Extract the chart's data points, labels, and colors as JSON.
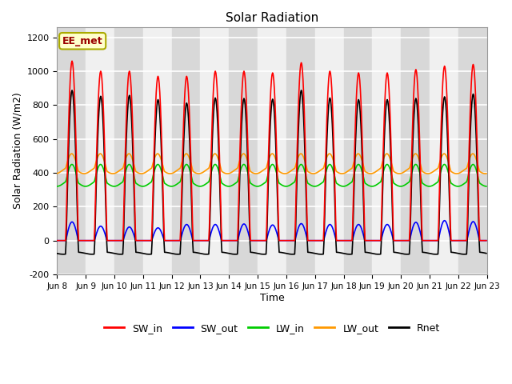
{
  "title": "Solar Radiation",
  "ylabel": "Solar Radiation (W/m2)",
  "xlabel": "Time",
  "ylim": [
    -200,
    1260
  ],
  "xlim": [
    0,
    360
  ],
  "annotation_text": "EE_met",
  "legend_entries": [
    "SW_in",
    "SW_out",
    "LW_in",
    "LW_out",
    "Rnet"
  ],
  "line_colors": [
    "#ff0000",
    "#0000ff",
    "#00cc00",
    "#ff9900",
    "#000000"
  ],
  "xtick_positions": [
    0,
    24,
    48,
    72,
    96,
    120,
    144,
    168,
    192,
    216,
    240,
    264,
    288,
    312,
    336,
    360
  ],
  "xtick_labels": [
    "Jun 8",
    "Jun 9",
    "Jun 10",
    "Jun 11",
    "Jun 12",
    "Jun 13",
    "Jun 14",
    "Jun 15",
    "Jun 16",
    "Jun 17",
    "Jun 18",
    "Jun 19",
    "Jun 20",
    "Jun 21",
    "Jun 22",
    "Jun 23"
  ],
  "ytick_positions": [
    -200,
    0,
    200,
    400,
    600,
    800,
    1000,
    1200
  ],
  "background_color": "#ffffff",
  "plot_bg_color": "#ffffff",
  "grid_color": "#ffffff",
  "n_days": 15,
  "hours_per_day": 24,
  "dt": 0.5,
  "day_peaks_SW_in": [
    1060,
    1000,
    1000,
    970,
    970,
    1000,
    1000,
    990,
    1050,
    1000,
    990,
    990,
    1010,
    1030,
    1040
  ],
  "day_peaks_SW_out": [
    110,
    85,
    80,
    75,
    95,
    95,
    98,
    92,
    100,
    95,
    95,
    95,
    108,
    118,
    112
  ],
  "band_color_even": "#d8d8d8",
  "band_color_odd": "#f0f0f0"
}
